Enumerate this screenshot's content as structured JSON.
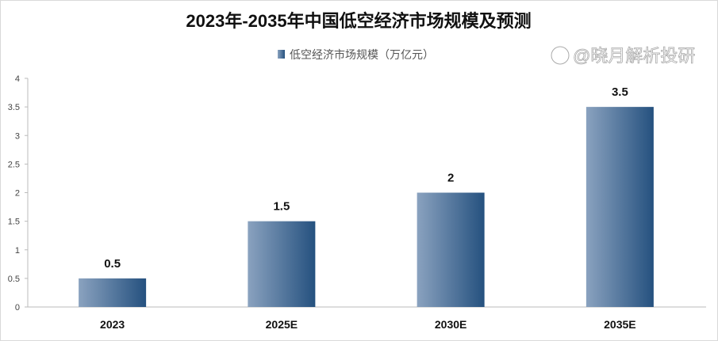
{
  "chart_data": {
    "type": "bar",
    "title": "2023年-2035年中国低空经济市场规模及预测",
    "categories": [
      "2023",
      "2025E",
      "2030E",
      "2035E"
    ],
    "series": [
      {
        "name": "低空经济市场规模（万亿元）",
        "values": [
          0.5,
          1.5,
          2,
          3.5
        ]
      }
    ],
    "data_labels": [
      "0.5",
      "1.5",
      "2",
      "3.5"
    ],
    "ylim": [
      0,
      4
    ],
    "yticks": [
      "0",
      "0.5",
      "1",
      "1.5",
      "2",
      "2.5",
      "3",
      "3.5",
      "4"
    ],
    "grid": false,
    "legend": "top-center",
    "colors": {
      "bar_light": "#8aa2bf",
      "bar_dark": "#25517f"
    }
  },
  "watermark": "@晓月解析投研"
}
